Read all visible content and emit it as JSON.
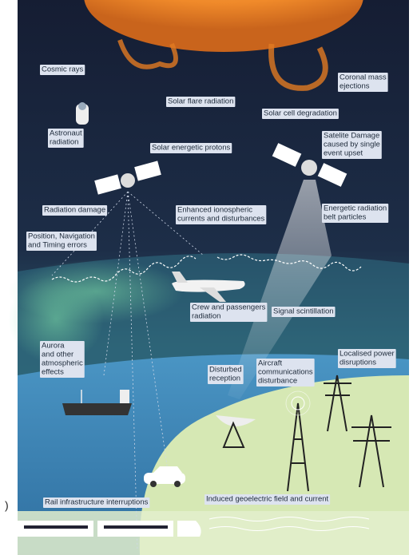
{
  "labels": [
    {
      "lines": [
        "Cosmic rays"
      ]
    },
    {
      "lines": [
        "Solar flare radiation"
      ]
    },
    {
      "lines": [
        "Coronal mass",
        "ejections"
      ]
    },
    {
      "lines": [
        "Solar cell degradation"
      ]
    },
    {
      "lines": [
        "Astronaut",
        "radiation"
      ]
    },
    {
      "lines": [
        "Solar energetic protons"
      ]
    },
    {
      "lines": [
        "Satelite Damage",
        "caused by single",
        "event upset"
      ]
    },
    {
      "lines": [
        "Radiation damage"
      ]
    },
    {
      "lines": [
        "Enhanced ionospheric",
        "currents and disturbances"
      ]
    },
    {
      "lines": [
        "Energetic radiation",
        "belt particles"
      ]
    },
    {
      "lines": [
        "Position, Navigation",
        "and Timing errors"
      ]
    },
    {
      "lines": [
        "Crew and passengers",
        "radiation"
      ]
    },
    {
      "lines": [
        "Signal scintillation"
      ]
    },
    {
      "lines": [
        "Aurora",
        "and other",
        "atmospheric",
        "effects"
      ]
    },
    {
      "lines": [
        "Disturbed",
        "reception"
      ]
    },
    {
      "lines": [
        "Aircraft",
        "communications",
        "disturbance"
      ]
    },
    {
      "lines": [
        "Localised power",
        "disruptions"
      ]
    },
    {
      "lines": [
        "Rail infrastructure interruptions"
      ]
    },
    {
      "lines": [
        "Induced geoelectric field and current"
      ]
    },
    {
      "lines": [
        ")"
      ]
    }
  ]
}
